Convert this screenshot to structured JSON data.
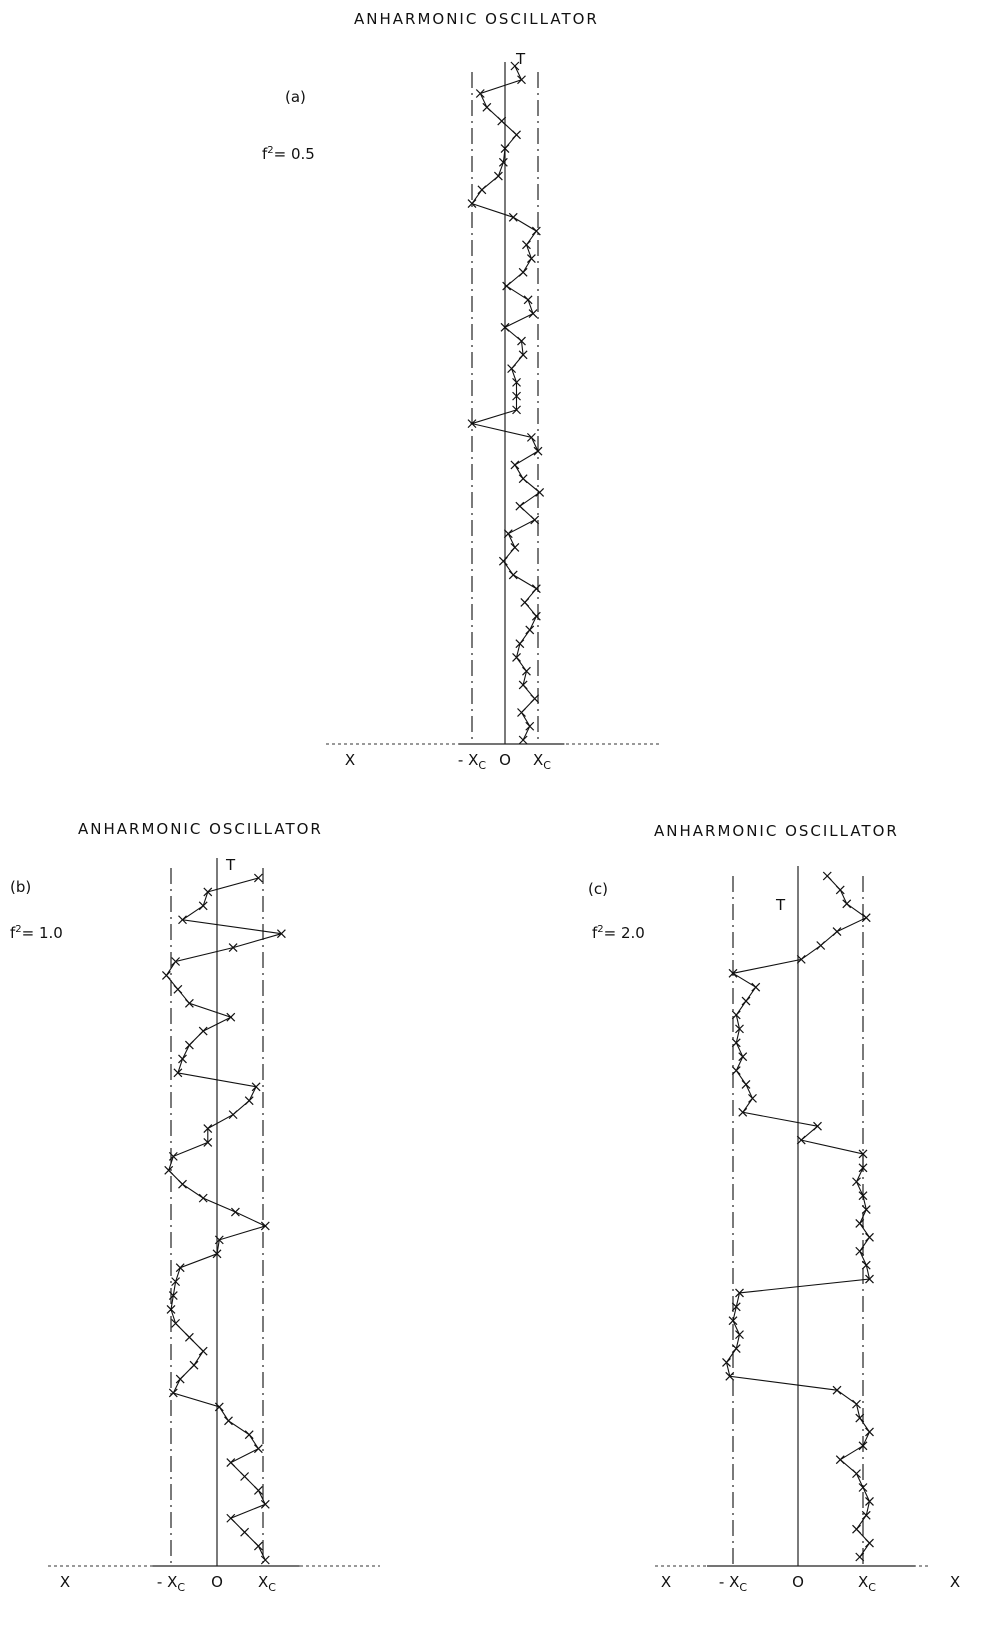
{
  "chart_data": [
    {
      "type": "line",
      "title": "ANHARMONIC OSCILLATOR",
      "panel_label": "(a)",
      "param_base": "f",
      "param_exp": "2",
      "param_rest": "= 0.5",
      "time_axis_label": "T",
      "tick_labels": {
        "x_far": "X",
        "neg_xc_base": "- X",
        "xc_sub": "C",
        "zero": "O",
        "pos_xc_base": "X"
      },
      "xc": 1.0,
      "time_steps": 50,
      "series": [
        {
          "values": [
            0.55,
            0.75,
            0.5,
            0.9,
            0.55,
            0.65,
            0.35,
            0.45,
            0.75,
            0.95,
            0.6,
            0.95,
            0.25,
            -0.05,
            0.3,
            0.1,
            0.9,
            0.45,
            1.05,
            0.55,
            0.3,
            1.0,
            0.8,
            -1.0,
            0.35,
            0.35,
            0.35,
            0.2,
            0.55,
            0.5,
            0.0,
            0.85,
            0.7,
            0.05,
            0.55,
            0.8,
            0.65,
            0.95,
            0.25,
            -1.0,
            -0.7,
            -0.2,
            -0.05,
            0.0,
            0.35,
            -0.1,
            -0.55,
            -0.75,
            0.5,
            0.3
          ]
        }
      ]
    },
    {
      "type": "line",
      "title": "ANHARMONIC OSCILLATOR",
      "panel_label": "(b)",
      "param_base": "f",
      "param_exp": "2",
      "param_rest": "= 1.0",
      "time_axis_label": "T",
      "tick_labels": {
        "x_far": "X",
        "neg_xc_base": "- X",
        "xc_sub": "C",
        "zero": "O",
        "pos_xc_base": "X"
      },
      "xc": 1.0,
      "time_steps": 50,
      "series": [
        {
          "values": [
            1.05,
            0.9,
            0.6,
            0.3,
            1.05,
            0.9,
            0.6,
            0.3,
            0.9,
            0.7,
            0.25,
            0.05,
            -0.95,
            -0.8,
            -0.5,
            -0.3,
            -0.6,
            -0.9,
            -1.0,
            -0.95,
            -0.9,
            -0.8,
            0.0,
            0.05,
            1.05,
            0.4,
            -0.3,
            -0.75,
            -1.05,
            -0.95,
            -0.2,
            -0.2,
            0.35,
            0.7,
            0.85,
            -0.85,
            -0.75,
            -0.6,
            -0.3,
            0.3,
            -0.6,
            -0.85,
            -1.1,
            -0.9,
            0.35,
            1.4,
            -0.75,
            -0.3,
            -0.2,
            0.9
          ]
        }
      ]
    },
    {
      "type": "line",
      "title": "ANHARMONIC OSCILLATOR",
      "panel_label": "(c)",
      "param_base": "f",
      "param_exp": "2",
      "param_rest": "= 2.0",
      "time_axis_label": "T",
      "tick_labels": {
        "x_far": "X",
        "neg_xc_base": "- X",
        "xc_sub": "C",
        "zero": "O",
        "pos_xc_base": "X"
      },
      "xc": 1.0,
      "time_steps": 50,
      "series": [
        {
          "values": [
            0.95,
            1.1,
            0.9,
            1.05,
            1.1,
            1.0,
            0.9,
            0.65,
            1.0,
            1.1,
            0.95,
            0.9,
            0.6,
            -1.05,
            -1.1,
            -0.95,
            -0.9,
            -1.0,
            -0.95,
            -0.9,
            1.1,
            1.05,
            0.95,
            1.1,
            0.95,
            1.05,
            1.0,
            0.9,
            1.0,
            1.0,
            0.05,
            0.3,
            -0.85,
            -0.7,
            -0.8,
            -0.95,
            -0.85,
            -0.95,
            -0.9,
            -0.95,
            -0.8,
            -0.65,
            -1.0,
            0.05,
            0.35,
            0.6,
            1.05,
            0.75,
            0.65,
            0.45
          ]
        }
      ]
    }
  ]
}
